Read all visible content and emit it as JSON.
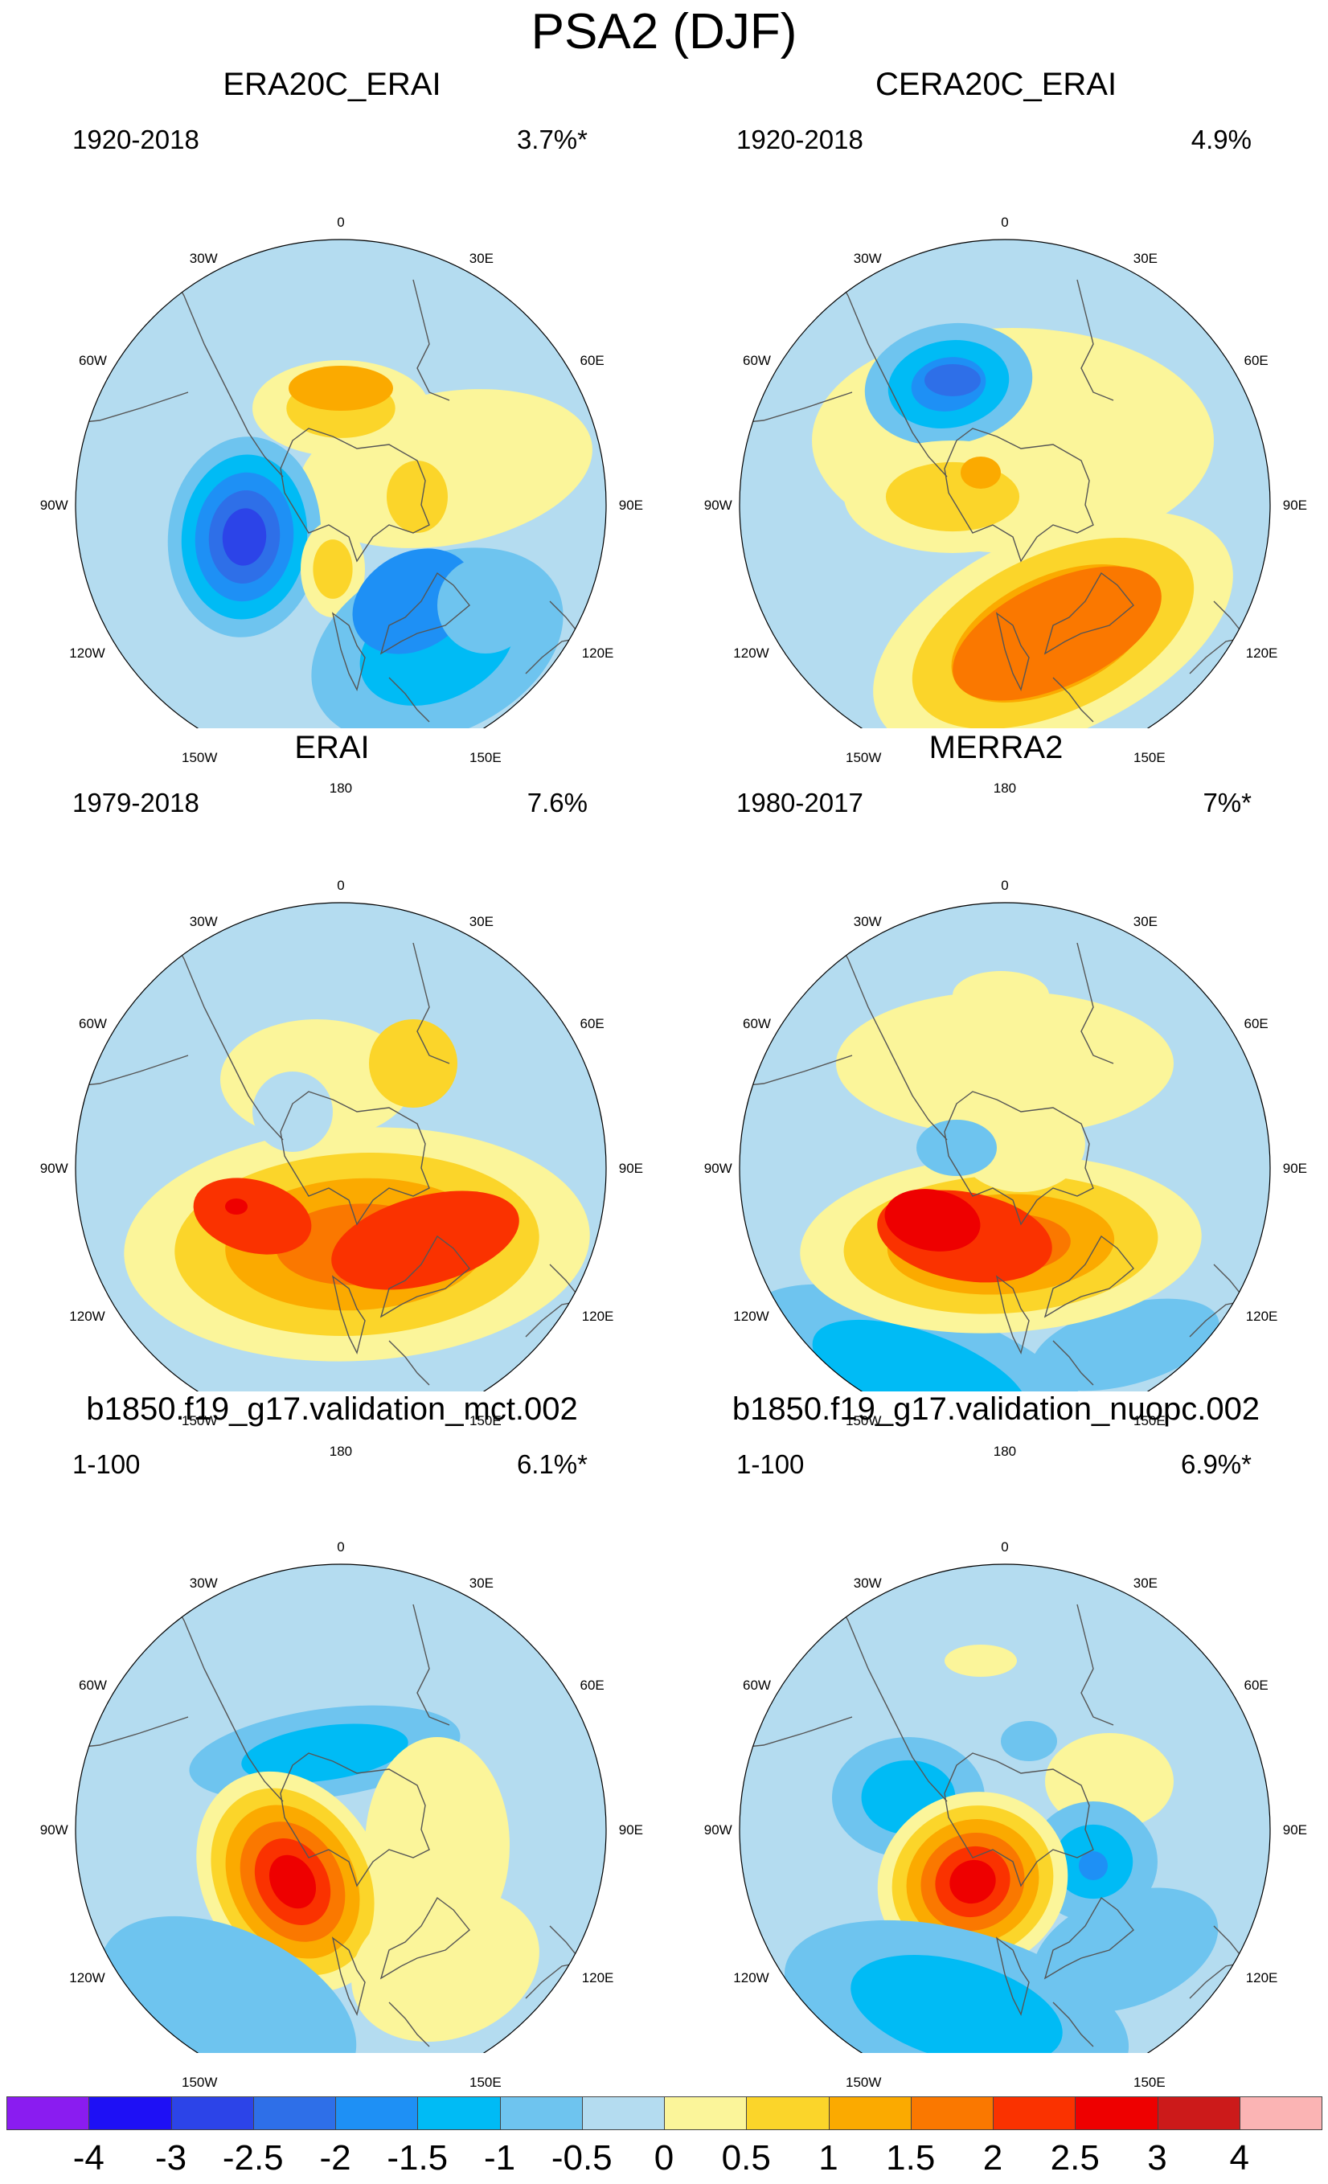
{
  "figure_title": "PSA2 (DJF)",
  "map_labels": {
    "top": "0",
    "a30e": "30E",
    "a60e": "60E",
    "a90e": "90E",
    "a120e": "120E",
    "a150e": "150E",
    "bottom": "180",
    "a150w": "150W",
    "a120w": "120W",
    "a90w": "90W",
    "a60w": "60W",
    "a30w": "30W"
  },
  "panels": [
    {
      "name": "ERA20C_ERAI",
      "period": "1920-2018",
      "variance": "3.7%*"
    },
    {
      "name": "CERA20C_ERAI",
      "period": "1920-2018",
      "variance": "4.9%"
    },
    {
      "name": "ERAI",
      "period": "1979-2018",
      "variance": "7.6%"
    },
    {
      "name": "MERRA2",
      "period": "1980-2017",
      "variance": "7%*"
    },
    {
      "name": "b1850.f19_g17.validation_mct.002",
      "period": "1-100",
      "variance": "6.1%*"
    },
    {
      "name": "b1850.f19_g17.validation_nuopc.002",
      "period": "1-100",
      "variance": "6.9%*"
    }
  ],
  "colorbar": {
    "labels": [
      "-4",
      "-3",
      "-2.5",
      "-2",
      "-1.5",
      "-1",
      "-0.5",
      "0",
      "0.5",
      "1",
      "1.5",
      "2",
      "2.5",
      "3",
      "4"
    ],
    "colors": [
      "#8a1cf0",
      "#1e10f5",
      "#2c44e8",
      "#2e6fe8",
      "#1e90f5",
      "#00bbf5",
      "#6ec4ef",
      "#b4dcf0",
      "#fbf59a",
      "#fbd52a",
      "#fbaa00",
      "#fa7800",
      "#fa3200",
      "#ee0000",
      "#cc1a1a",
      "#fbb4b4"
    ]
  }
}
